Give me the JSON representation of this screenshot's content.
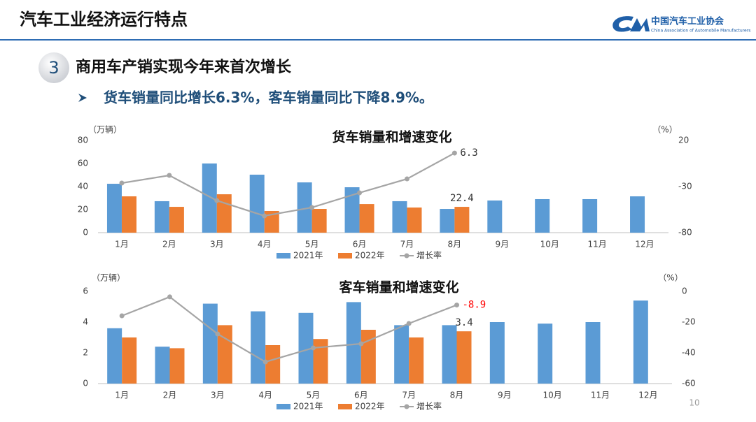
{
  "header": {
    "title": "汽车工业经济运行特点",
    "logo_cn": "中国汽车工业协会",
    "logo_en": "China Association of Automobile Manufacturers"
  },
  "section": {
    "number": "3",
    "title": "商用车产销实现今年来首次增长",
    "bullet": "货车销量同比增长6.3%，客车销量同比下降8.9%。"
  },
  "page_number": "10",
  "chart_data": [
    {
      "type": "bar",
      "title": "货车销量和增速变化",
      "y_label": "（万辆）",
      "y2_label": "（%）",
      "categories": [
        "1月",
        "2月",
        "3月",
        "4月",
        "5月",
        "6月",
        "7月",
        "8月",
        "9月",
        "10月",
        "11月",
        "12月"
      ],
      "ylim": [
        0,
        80
      ],
      "yticks": [
        0,
        20,
        40,
        60,
        80
      ],
      "y2lim": [
        -80,
        20
      ],
      "y2ticks": [
        -80,
        -30,
        20
      ],
      "series": [
        {
          "name": "2021年",
          "color": "#5b9bd5",
          "values": [
            42.4,
            27.3,
            60.0,
            50.3,
            43.6,
            39.4,
            27.3,
            20.6,
            27.9,
            29.1,
            29.1,
            31.5
          ]
        },
        {
          "name": "2022年",
          "color": "#ed7d31",
          "values": [
            31.5,
            22.4,
            33.3,
            18.8,
            20.6,
            24.8,
            21.8,
            22.4,
            null,
            null,
            null,
            null
          ],
          "value_labels": [
            null,
            null,
            null,
            null,
            null,
            null,
            null,
            "22.4",
            null,
            null,
            null,
            null
          ]
        },
        {
          "name": "增长率",
          "color": "#a5a5a5",
          "axis": "y2",
          "type": "line",
          "values": [
            -26.2,
            -17.9,
            -45.2,
            -61.8,
            -52.7,
            -36.8,
            -21.7,
            6.3,
            null,
            null,
            null,
            null
          ],
          "value_labels": [
            null,
            null,
            null,
            null,
            null,
            null,
            null,
            "6.3",
            null,
            null,
            null,
            null
          ]
        }
      ]
    },
    {
      "type": "bar",
      "title": "客车销量和增速变化",
      "y_label": "（万辆）",
      "y2_label": "（%）",
      "categories": [
        "1月",
        "2月",
        "3月",
        "4月",
        "5月",
        "6月",
        "7月",
        "8月",
        "9月",
        "10月",
        "11月",
        "12月"
      ],
      "ylim": [
        0,
        6
      ],
      "yticks": [
        0,
        2,
        4,
        6
      ],
      "y2lim": [
        -60,
        0
      ],
      "y2ticks": [
        -60,
        -40,
        -20,
        0
      ],
      "series": [
        {
          "name": "2021年",
          "color": "#5b9bd5",
          "values": [
            3.6,
            2.4,
            5.2,
            4.7,
            4.6,
            5.3,
            3.8,
            3.8,
            4.0,
            3.9,
            4.0,
            5.4
          ]
        },
        {
          "name": "2022年",
          "color": "#ed7d31",
          "values": [
            3.0,
            2.3,
            3.8,
            2.5,
            2.9,
            3.5,
            3.0,
            3.4,
            null,
            null,
            null,
            null
          ],
          "value_labels": [
            null,
            null,
            null,
            null,
            null,
            null,
            null,
            "3.4",
            null,
            null,
            null,
            null
          ]
        },
        {
          "name": "增长率",
          "color": "#a5a5a5",
          "axis": "y2",
          "type": "line",
          "values": [
            -15.9,
            -3.6,
            -27.7,
            -45.9,
            -36.8,
            -34.1,
            -20.9,
            -8.9,
            null,
            null,
            null,
            null
          ],
          "value_labels": [
            null,
            null,
            null,
            null,
            null,
            null,
            null,
            "-8.9",
            null,
            null,
            null,
            null
          ],
          "label_color": "#ff0000"
        }
      ]
    }
  ]
}
